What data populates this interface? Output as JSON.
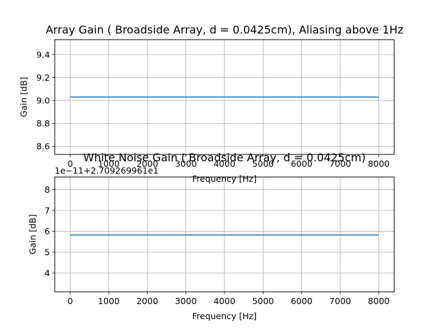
{
  "chart_data": [
    {
      "type": "line",
      "title": "Array Gain ( Broadside Array, d = 0.0425cm), Aliasing above 1Hz",
      "xlabel": "Frequency [Hz]",
      "ylabel": "Gain [dB]",
      "xlim": [
        -400,
        8400
      ],
      "ylim": [
        8.53,
        9.53
      ],
      "x_ticks": [
        0,
        1000,
        2000,
        3000,
        4000,
        5000,
        6000,
        7000,
        8000
      ],
      "x_tick_labels": [
        "0",
        "1000",
        "2000",
        "3000",
        "4000",
        "5000",
        "6000",
        "7000",
        "8000"
      ],
      "y_ticks": [
        8.6,
        8.8,
        9.0,
        9.2,
        9.4
      ],
      "y_tick_labels": [
        "8.6",
        "8.8",
        "9.0",
        "9.2",
        "9.4"
      ],
      "offset_text": "",
      "grid": true,
      "color": "#1f77b4",
      "series": [
        {
          "x": [
            0,
            8000
          ],
          "values": [
            9.03,
            9.03
          ]
        }
      ]
    },
    {
      "type": "line",
      "title": "White Noise Gain ( Broadside Array, d = 0.0425cm)",
      "xlabel": "Frequency [Hz]",
      "ylabel": "Gain [dB]",
      "xlim": [
        -400,
        8400
      ],
      "ylim": [
        3.1,
        8.6
      ],
      "x_ticks": [
        0,
        1000,
        2000,
        3000,
        4000,
        5000,
        6000,
        7000,
        8000
      ],
      "x_tick_labels": [
        "0",
        "1000",
        "2000",
        "3000",
        "4000",
        "5000",
        "6000",
        "7000",
        "8000"
      ],
      "y_ticks": [
        4,
        5,
        6,
        7,
        8
      ],
      "y_tick_labels": [
        "4",
        "5",
        "6",
        "7",
        "8"
      ],
      "offset_text": "1e−11+2.709269961e1",
      "grid": true,
      "color": "#1f77b4",
      "series": [
        {
          "x": [
            0,
            8000
          ],
          "values": [
            5.82,
            5.82
          ]
        }
      ]
    }
  ]
}
